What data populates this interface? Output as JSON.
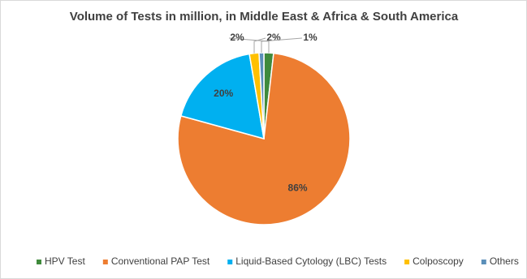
{
  "chart_data": {
    "type": "pie",
    "title": "Volume of Tests in million, in Middle East & Africa & South America",
    "categories": [
      "HPV Test",
      "Conventional PAP Test",
      "Liquid-Based Cytology (LBC) Tests",
      "Colposcopy",
      "Others"
    ],
    "values": [
      2,
      86,
      20,
      2,
      1
    ],
    "value_labels": [
      "2%",
      "86%",
      "20%",
      "2%",
      "1%"
    ],
    "colors": [
      "#3f8a3c",
      "#ed7d31",
      "#00b0f0",
      "#ffc000",
      "#5b8fb9"
    ],
    "legend": "bottom"
  }
}
